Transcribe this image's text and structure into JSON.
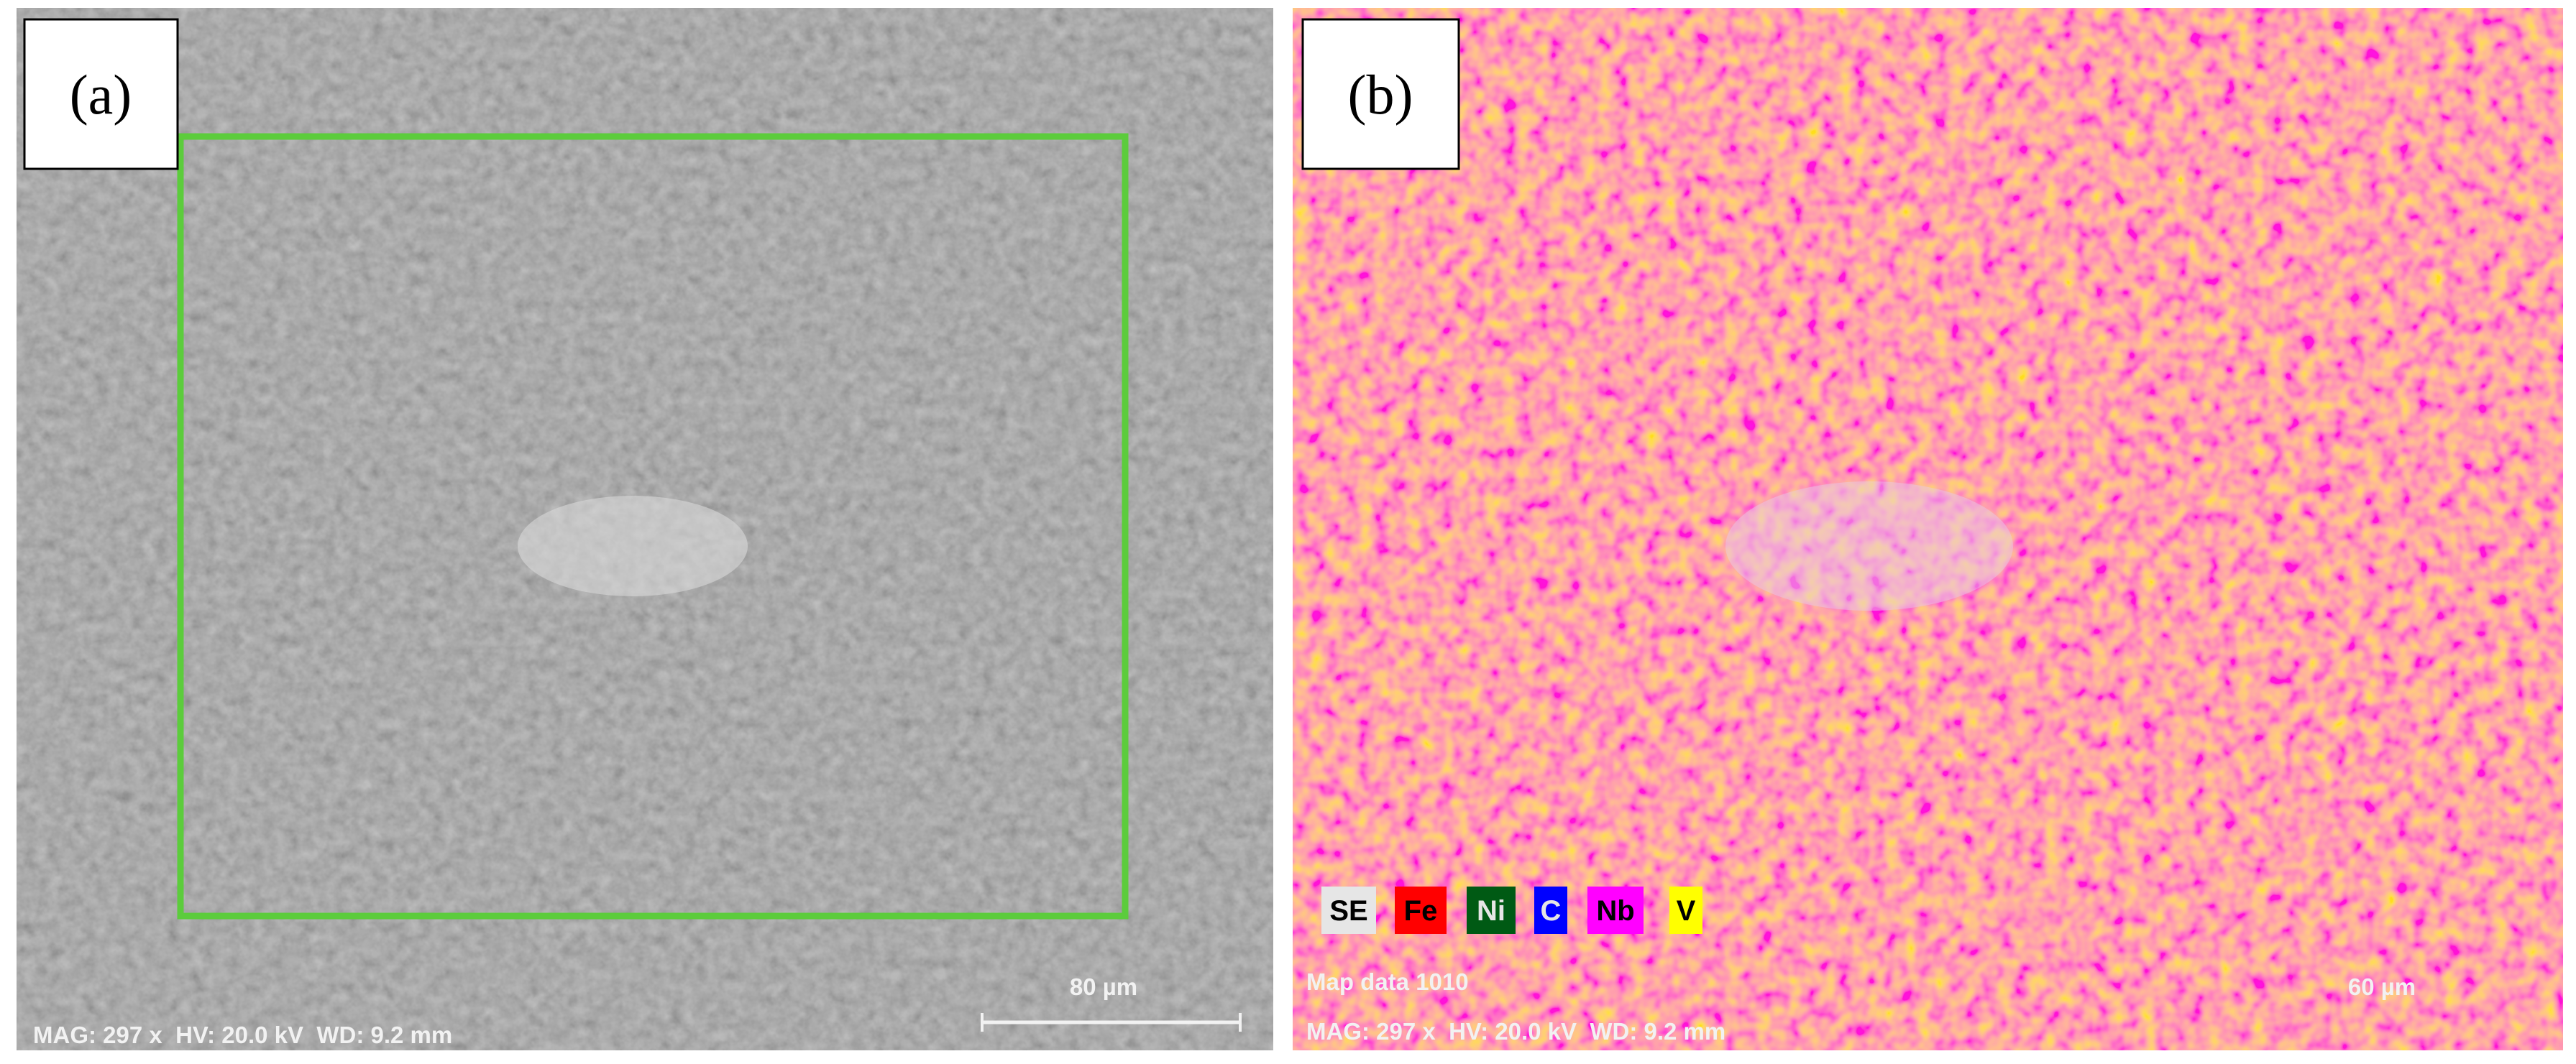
{
  "panels": [
    {
      "label": "(a)",
      "scale_bar": "80 µm",
      "info": "MAG: 297 x  HV: 20.0 kV  WD: 9.2 mm"
    },
    {
      "label": "(b)",
      "legend": [
        "SE",
        "Fe",
        "Ni",
        "C",
        "Nb",
        "V"
      ],
      "map_title": "Map data 1010",
      "scale_bar": "60 µm",
      "info": "MAG: 297 x  HV: 20.0 kV  WD: 9.2 mm"
    }
  ]
}
